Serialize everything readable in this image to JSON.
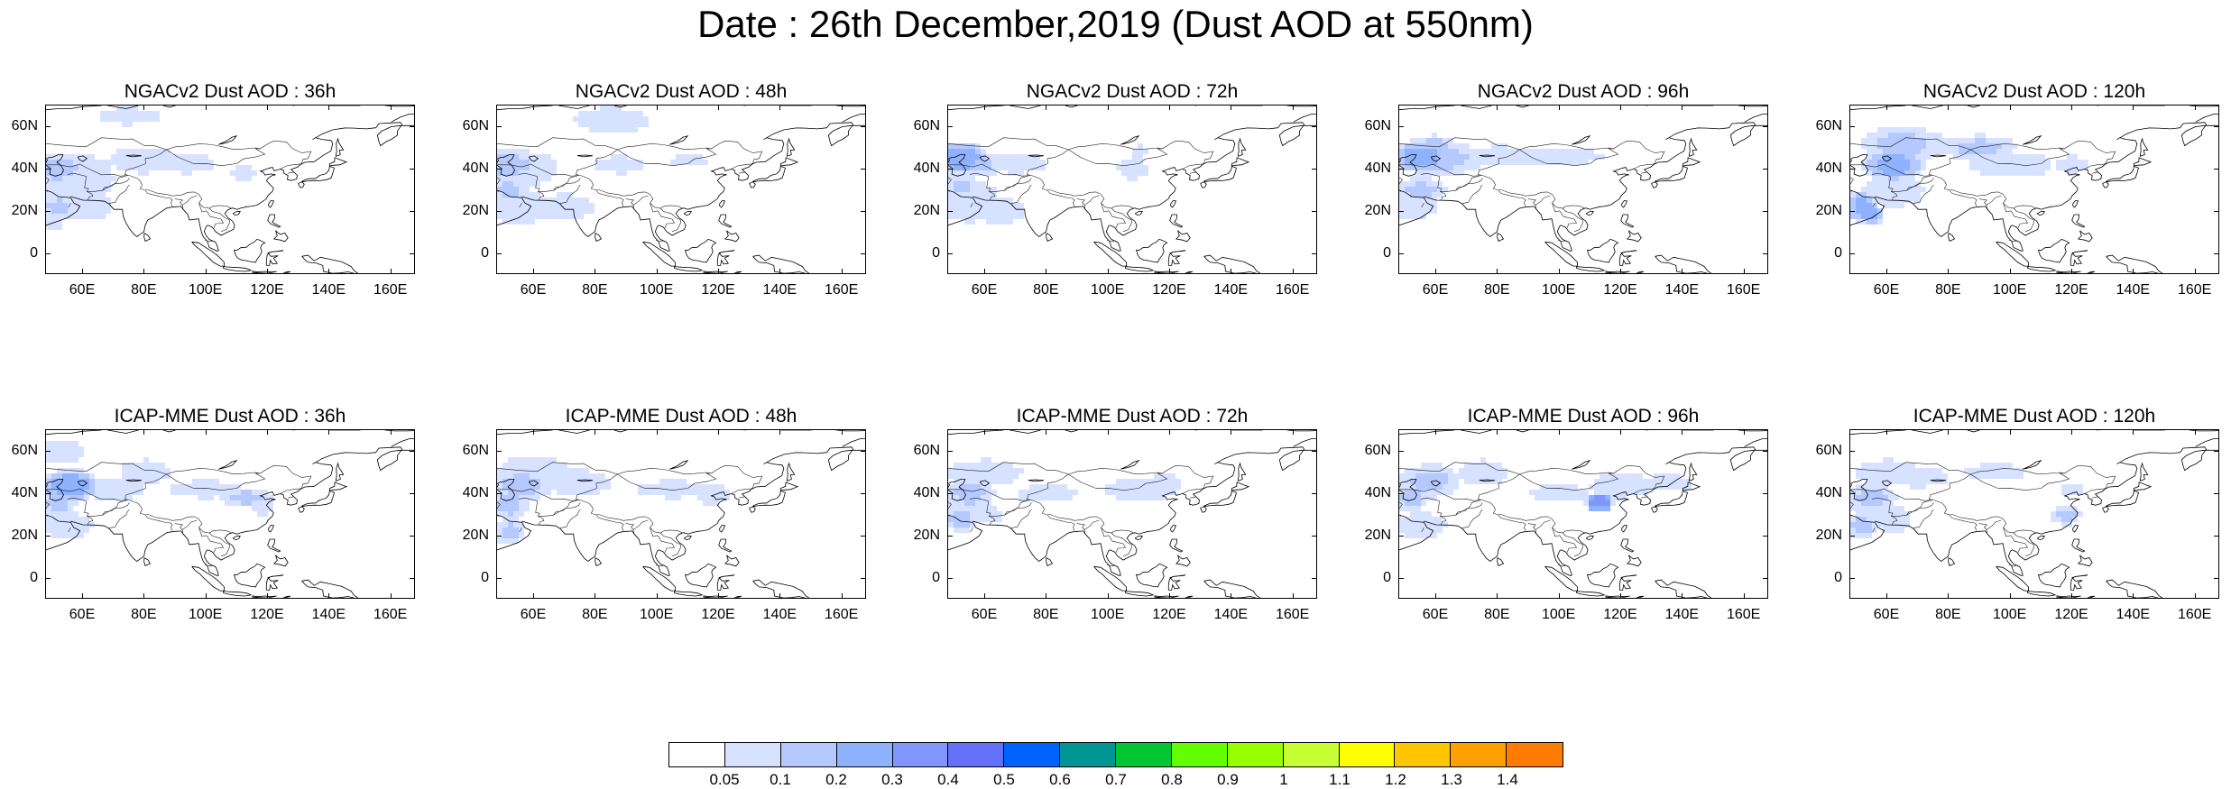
{
  "title": "Date : 26th December,2019 (Dust AOD at 550nm)",
  "lat_labels": [
    "60N",
    "40N",
    "20N",
    "0"
  ],
  "lon_labels": [
    "60E",
    "80E",
    "100E",
    "120E",
    "140E",
    "160E"
  ],
  "panels": [
    {
      "title": "NGACv2 Dust AOD : 36h",
      "row": 0,
      "col": 0
    },
    {
      "title": "NGACv2 Dust AOD : 48h",
      "row": 0,
      "col": 1
    },
    {
      "title": "NGACv2 Dust AOD : 72h",
      "row": 0,
      "col": 2
    },
    {
      "title": "NGACv2 Dust AOD : 96h",
      "row": 0,
      "col": 3
    },
    {
      "title": "NGACv2 Dust AOD : 120h",
      "row": 0,
      "col": 4
    },
    {
      "title": "ICAP-MME Dust AOD : 36h",
      "row": 1,
      "col": 0
    },
    {
      "title": "ICAP-MME Dust AOD : 48h",
      "row": 1,
      "col": 1
    },
    {
      "title": "ICAP-MME Dust AOD : 72h",
      "row": 1,
      "col": 2
    },
    {
      "title": "ICAP-MME Dust AOD : 96h",
      "row": 1,
      "col": 3
    },
    {
      "title": "ICAP-MME Dust AOD : 120h",
      "row": 1,
      "col": 4
    }
  ],
  "colorbar": {
    "labels": [
      "0.05",
      "0.1",
      "0.2",
      "0.3",
      "0.4",
      "0.5",
      "0.6",
      "0.7",
      "0.8",
      "0.9",
      "1",
      "1.1",
      "1.2",
      "1.3",
      "1.4"
    ],
    "colors": [
      "#ffffff",
      "#d6e2ff",
      "#b5c9ff",
      "#8eb2ff",
      "#7f96ff",
      "#6370f8",
      "#0063ff",
      "#009696",
      "#00c633",
      "#63ff00",
      "#96ff00",
      "#c6ff33",
      "#ffff00",
      "#ffc600",
      "#ffa000",
      "#ff7c00",
      "#ff1900"
    ]
  }
}
